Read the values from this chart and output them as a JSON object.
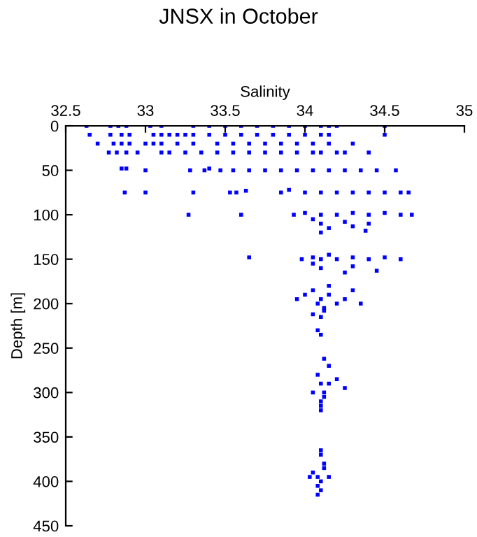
{
  "chart_data": {
    "type": "scatter",
    "title": "JNSX in October",
    "xlabel": "Salinity",
    "ylabel": "Depth [m]",
    "marker": "square",
    "grid": false,
    "xlim": [
      32.5,
      35
    ],
    "xticks": [
      32.5,
      33,
      33.5,
      34,
      34.5,
      35
    ],
    "ylim": [
      450,
      0
    ],
    "yticks": [
      0,
      50,
      100,
      150,
      200,
      250,
      300,
      350,
      400,
      450
    ],
    "series": [
      {
        "color": "#0000ff",
        "x": [
          32.63,
          32.78,
          32.83,
          32.88,
          33.03,
          33.1,
          33.3,
          33.4,
          33.5,
          33.6,
          33.7,
          33.8,
          33.9,
          34.0,
          34.1,
          34.15,
          34.2,
          34.5,
          32.65,
          32.78,
          32.85,
          32.9,
          33.05,
          33.1,
          33.15,
          33.2,
          33.25,
          33.3,
          33.4,
          33.5,
          33.6,
          33.7,
          33.8,
          33.9,
          34.0,
          34.1,
          34.15,
          34.5,
          32.7,
          32.8,
          32.85,
          32.9,
          33.0,
          33.05,
          33.1,
          33.2,
          33.3,
          33.45,
          33.55,
          33.65,
          33.75,
          33.85,
          33.95,
          34.05,
          34.15,
          34.3,
          32.77,
          32.82,
          32.88,
          32.95,
          33.1,
          33.15,
          33.25,
          33.35,
          33.45,
          33.55,
          33.65,
          33.75,
          33.85,
          33.95,
          34.05,
          34.1,
          34.2,
          34.25,
          34.4,
          32.85,
          32.88,
          33.0,
          33.28,
          33.37,
          33.4,
          33.47,
          33.55,
          33.65,
          33.75,
          33.85,
          33.95,
          34.05,
          34.15,
          34.25,
          34.35,
          34.45,
          34.57,
          32.87,
          33.0,
          33.3,
          33.53,
          33.57,
          33.63,
          33.85,
          33.9,
          34.0,
          34.1,
          34.2,
          34.3,
          34.4,
          34.5,
          34.6,
          34.65,
          33.27,
          33.6,
          33.93,
          34.0,
          34.1,
          34.2,
          34.3,
          34.4,
          34.5,
          34.6,
          34.67,
          34.05,
          34.1,
          34.15,
          34.25,
          34.3,
          34.4,
          34.1,
          34.38,
          33.65,
          33.98,
          34.05,
          34.1,
          34.15,
          34.2,
          34.3,
          34.4,
          34.5,
          34.6,
          34.1,
          34.05,
          34.25,
          34.3,
          34.45,
          33.95,
          34.0,
          34.05,
          34.08,
          34.1,
          34.12,
          34.15,
          34.2,
          34.25,
          34.3,
          34.35,
          34.1,
          34.05,
          34.15,
          34.08,
          34.1,
          34.12,
          34.08,
          34.1,
          34.12,
          34.15,
          34.2,
          34.25,
          34.05,
          34.1,
          34.12,
          34.15,
          34.1,
          34.12,
          34.1,
          34.05,
          34.08,
          34.1,
          34.12,
          34.15,
          34.1,
          34.03,
          34.08,
          34.1,
          34.12,
          34.1,
          34.08
        ],
        "values": [
          0,
          0,
          0,
          0,
          0,
          0,
          0,
          0,
          0,
          0,
          0,
          0,
          0,
          0,
          0,
          0,
          0,
          0,
          10,
          10,
          10,
          10,
          10,
          10,
          10,
          10,
          10,
          10,
          10,
          10,
          10,
          10,
          10,
          10,
          10,
          10,
          10,
          10,
          20,
          20,
          20,
          20,
          20,
          20,
          20,
          20,
          20,
          20,
          20,
          20,
          20,
          20,
          20,
          20,
          20,
          20,
          30,
          30,
          30,
          30,
          30,
          30,
          30,
          30,
          30,
          30,
          30,
          30,
          30,
          30,
          30,
          30,
          30,
          30,
          30,
          48,
          48,
          50,
          50,
          50,
          48,
          50,
          50,
          50,
          50,
          50,
          50,
          50,
          50,
          50,
          50,
          50,
          50,
          75,
          75,
          75,
          75,
          75,
          73,
          75,
          72,
          75,
          75,
          75,
          75,
          75,
          75,
          75,
          75,
          100,
          100,
          100,
          98,
          100,
          100,
          98,
          100,
          98,
          100,
          100,
          105,
          110,
          115,
          108,
          113,
          110,
          120,
          118,
          148,
          150,
          148,
          150,
          145,
          150,
          148,
          150,
          148,
          150,
          160,
          155,
          165,
          158,
          163,
          195,
          190,
          185,
          200,
          195,
          205,
          190,
          200,
          195,
          185,
          200,
          215,
          212,
          180,
          230,
          235,
          208,
          280,
          290,
          300,
          290,
          285,
          295,
          300,
          310,
          305,
          270,
          315,
          262,
          320,
          390,
          395,
          400,
          385,
          395,
          370,
          395,
          405,
          410,
          380,
          365,
          415
        ]
      }
    ]
  }
}
